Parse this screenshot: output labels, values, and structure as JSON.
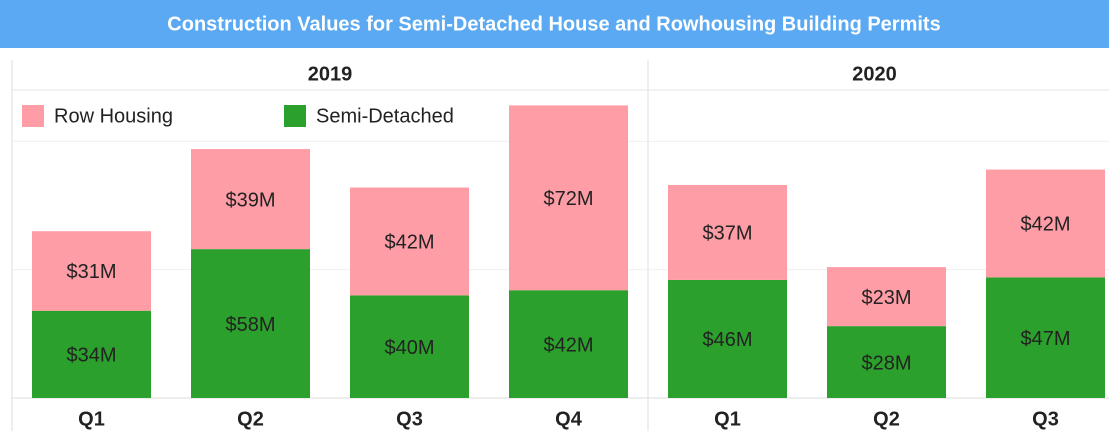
{
  "title": "Construction Values for Semi-Detached House and Rowhousing Building Permits",
  "chart_data": {
    "type": "stacked_bar",
    "panels": [
      {
        "title": "2019",
        "categories": [
          "Q1",
          "Q2",
          "Q3",
          "Q4"
        ]
      },
      {
        "title": "2020",
        "categories": [
          "Q1",
          "Q2",
          "Q3"
        ]
      }
    ],
    "series": [
      {
        "name": "Row Housing",
        "color": "#ff9da7",
        "values": [
          31,
          39,
          42,
          72,
          37,
          23,
          42
        ],
        "value_labels": [
          "$31M",
          "$39M",
          "$42M",
          "$72M",
          "$37M",
          "$23M",
          "$42M"
        ]
      },
      {
        "name": "Semi-Detached",
        "color": "#2ca02c",
        "values": [
          34,
          58,
          40,
          42,
          46,
          28,
          47
        ],
        "value_labels": [
          "$34M",
          "$58M",
          "$40M",
          "$42M",
          "$46M",
          "$28M",
          "$47M"
        ]
      }
    ],
    "ylim": [
      0,
      120
    ],
    "yticks": [
      0,
      50,
      100
    ],
    "grid": true
  }
}
